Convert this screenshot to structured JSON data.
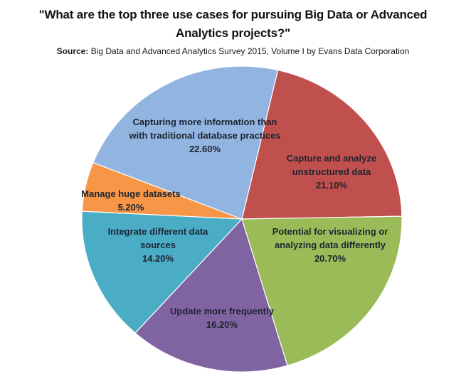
{
  "title": "\"What are the top three use cases for pursuing Big Data or Advanced Analytics projects?\"",
  "source": {
    "label": "Source:",
    "text": "Big Data and Advanced Analytics Survey 2015, Volume I by Evans Data Corporation"
  },
  "chart_data": {
    "type": "pie",
    "title": "What are the top three use cases for pursuing Big Data or Advanced Analytics projects?",
    "source": "Big Data and Advanced Analytics Survey 2015, Volume I by Evans Data Corporation",
    "direction": "clockwise",
    "start_angle_deg": 13,
    "legend": "none",
    "labels_position": "inside",
    "slices": [
      {
        "id": "capture-analyze-unstructured",
        "label": "Capture and analyze unstructured data",
        "value": 21.1,
        "percent_label": "21.10%",
        "color": "#C0504D"
      },
      {
        "id": "visualizing-analyzing-differently",
        "label": "Potential for visualizing or analyzing data differently",
        "value": 20.7,
        "percent_label": "20.70%",
        "color": "#9BBB59"
      },
      {
        "id": "update-more-frequently",
        "label": "Update more frequently",
        "value": 16.2,
        "percent_label": "16.20%",
        "color": "#8064A2"
      },
      {
        "id": "integrate-data-sources",
        "label": "Integrate different data sources",
        "value": 14.2,
        "percent_label": "14.20%",
        "color": "#4BACC6"
      },
      {
        "id": "manage-huge-datasets",
        "label": "Manage huge datasets",
        "value": 5.2,
        "percent_label": "5.20%",
        "color": "#F79646"
      },
      {
        "id": "capturing-more-information",
        "label": "Capturing more information than with traditional database practices",
        "value": 22.6,
        "percent_label": "22.60%",
        "color": "#91B4E1"
      }
    ]
  }
}
